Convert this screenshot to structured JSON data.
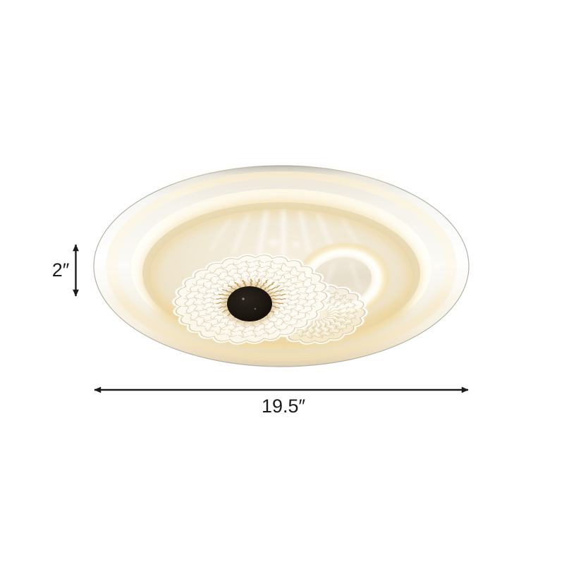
{
  "dimensions": {
    "height_label": "2″",
    "width_label": "19.5″"
  },
  "icons": {
    "height_arrow": "double-headed-vertical-arrow",
    "width_arrow": "double-headed-horizontal-arrow"
  },
  "colors": {
    "background": "#ffffff",
    "annotation": "#1c1c1c",
    "warm_glow": "#f2dfae",
    "lamp_white": "#fdfcf8",
    "frosted_acrylic": "#f1e9d6",
    "center_cap": "#1d1712"
  }
}
